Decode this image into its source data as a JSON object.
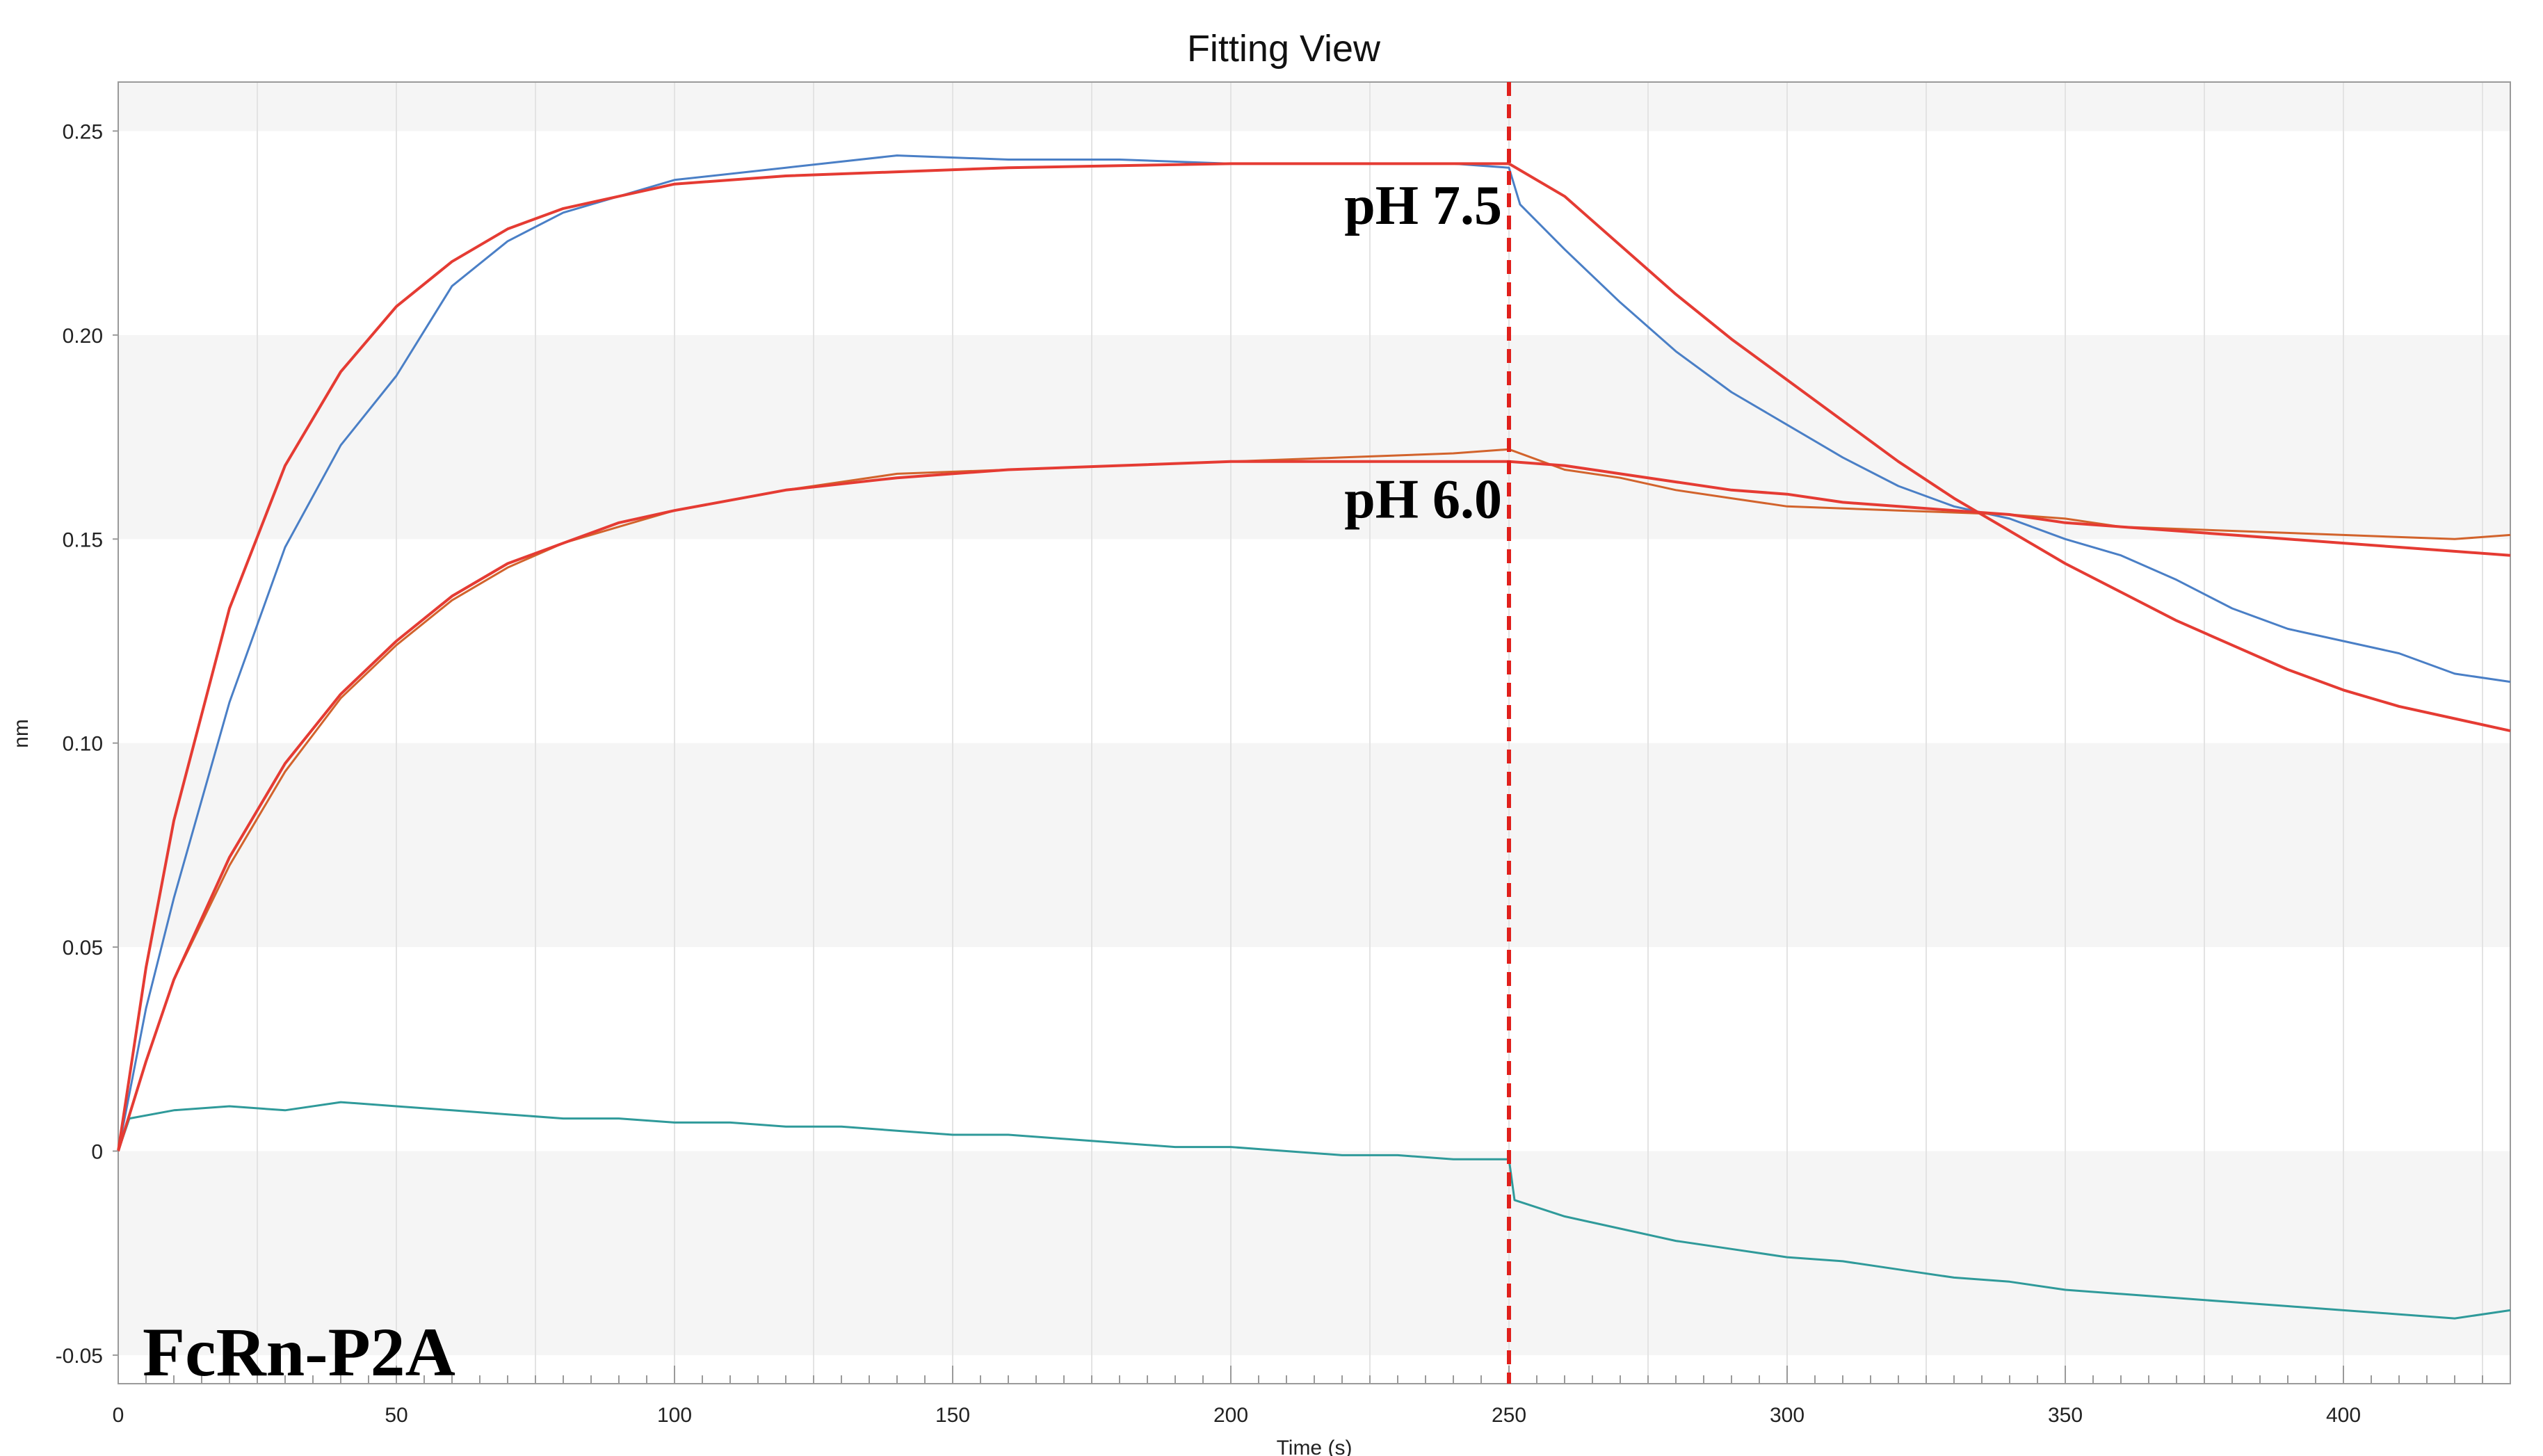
{
  "chart_data": {
    "type": "line",
    "title": "Fitting View",
    "xlabel": "Time (s)",
    "ylabel": "nm",
    "xlim": [
      0,
      430
    ],
    "ylim": [
      -0.057,
      0.262
    ],
    "x_ticks": [
      0,
      50,
      100,
      150,
      200,
      250,
      300,
      350,
      400
    ],
    "y_ticks": [
      -0.05,
      0,
      0.05,
      0.1,
      0.15,
      0.2,
      0.25
    ],
    "x_tick_labels": [
      "0",
      "50",
      "100",
      "150",
      "200",
      "250",
      "300",
      "350",
      "400"
    ],
    "y_tick_labels": [
      "-0.05",
      "0",
      "0.05",
      "0.10",
      "0.15",
      "0.20",
      "0.25"
    ],
    "grid": true,
    "vertical_marker": {
      "x": 250,
      "color": "#e0201c",
      "style": "dashed"
    },
    "series": [
      {
        "color": "#4a7fc6",
        "kind": "raw",
        "points": [
          [
            0,
            0
          ],
          [
            5,
            0.035
          ],
          [
            10,
            0.062
          ],
          [
            20,
            0.11
          ],
          [
            30,
            0.148
          ],
          [
            40,
            0.173
          ],
          [
            50,
            0.19
          ],
          [
            60,
            0.212
          ],
          [
            70,
            0.223
          ],
          [
            80,
            0.23
          ],
          [
            90,
            0.234
          ],
          [
            100,
            0.238
          ],
          [
            120,
            0.241
          ],
          [
            140,
            0.244
          ],
          [
            160,
            0.243
          ],
          [
            180,
            0.243
          ],
          [
            200,
            0.242
          ],
          [
            220,
            0.242
          ],
          [
            240,
            0.242
          ],
          [
            250,
            0.241
          ],
          [
            252,
            0.232
          ],
          [
            260,
            0.221
          ],
          [
            270,
            0.208
          ],
          [
            280,
            0.196
          ],
          [
            290,
            0.186
          ],
          [
            300,
            0.178
          ],
          [
            310,
            0.17
          ],
          [
            320,
            0.163
          ],
          [
            330,
            0.158
          ],
          [
            340,
            0.155
          ],
          [
            350,
            0.15
          ],
          [
            360,
            0.146
          ],
          [
            370,
            0.14
          ],
          [
            380,
            0.133
          ],
          [
            390,
            0.128
          ],
          [
            400,
            0.125
          ],
          [
            410,
            0.122
          ],
          [
            420,
            0.117
          ],
          [
            430,
            0.115
          ]
        ]
      },
      {
        "color": "#e53b33",
        "kind": "fit",
        "points": [
          [
            0,
            0
          ],
          [
            5,
            0.045
          ],
          [
            10,
            0.081
          ],
          [
            20,
            0.133
          ],
          [
            30,
            0.168
          ],
          [
            40,
            0.191
          ],
          [
            50,
            0.207
          ],
          [
            60,
            0.218
          ],
          [
            70,
            0.226
          ],
          [
            80,
            0.231
          ],
          [
            90,
            0.234
          ],
          [
            100,
            0.237
          ],
          [
            120,
            0.239
          ],
          [
            140,
            0.24
          ],
          [
            160,
            0.241
          ],
          [
            180,
            0.2415
          ],
          [
            200,
            0.242
          ],
          [
            220,
            0.242
          ],
          [
            240,
            0.242
          ],
          [
            250,
            0.242
          ],
          [
            260,
            0.234
          ],
          [
            270,
            0.222
          ],
          [
            280,
            0.21
          ],
          [
            290,
            0.199
          ],
          [
            300,
            0.189
          ],
          [
            310,
            0.179
          ],
          [
            320,
            0.169
          ],
          [
            330,
            0.16
          ],
          [
            340,
            0.152
          ],
          [
            350,
            0.144
          ],
          [
            360,
            0.137
          ],
          [
            370,
            0.13
          ],
          [
            380,
            0.124
          ],
          [
            390,
            0.118
          ],
          [
            400,
            0.113
          ],
          [
            410,
            0.109
          ],
          [
            420,
            0.106
          ],
          [
            430,
            0.103
          ]
        ]
      },
      {
        "color": "#d2632c",
        "kind": "raw",
        "points": [
          [
            0,
            0
          ],
          [
            5,
            0.022
          ],
          [
            10,
            0.042
          ],
          [
            20,
            0.07
          ],
          [
            30,
            0.093
          ],
          [
            40,
            0.111
          ],
          [
            50,
            0.124
          ],
          [
            60,
            0.135
          ],
          [
            70,
            0.143
          ],
          [
            80,
            0.149
          ],
          [
            90,
            0.153
          ],
          [
            100,
            0.157
          ],
          [
            120,
            0.162
          ],
          [
            140,
            0.166
          ],
          [
            160,
            0.167
          ],
          [
            180,
            0.168
          ],
          [
            200,
            0.169
          ],
          [
            220,
            0.17
          ],
          [
            240,
            0.171
          ],
          [
            250,
            0.172
          ],
          [
            260,
            0.167
          ],
          [
            270,
            0.165
          ],
          [
            280,
            0.162
          ],
          [
            290,
            0.16
          ],
          [
            300,
            0.158
          ],
          [
            320,
            0.157
          ],
          [
            340,
            0.156
          ],
          [
            350,
            0.155
          ],
          [
            360,
            0.153
          ],
          [
            380,
            0.152
          ],
          [
            400,
            0.151
          ],
          [
            420,
            0.15
          ],
          [
            430,
            0.151
          ]
        ]
      },
      {
        "color": "#e53b33",
        "kind": "fit",
        "points": [
          [
            0,
            0
          ],
          [
            5,
            0.022
          ],
          [
            10,
            0.042
          ],
          [
            20,
            0.072
          ],
          [
            30,
            0.095
          ],
          [
            40,
            0.112
          ],
          [
            50,
            0.125
          ],
          [
            60,
            0.136
          ],
          [
            70,
            0.144
          ],
          [
            80,
            0.149
          ],
          [
            90,
            0.154
          ],
          [
            100,
            0.157
          ],
          [
            120,
            0.162
          ],
          [
            140,
            0.165
          ],
          [
            160,
            0.167
          ],
          [
            180,
            0.168
          ],
          [
            200,
            0.169
          ],
          [
            220,
            0.169
          ],
          [
            240,
            0.169
          ],
          [
            250,
            0.169
          ],
          [
            260,
            0.168
          ],
          [
            270,
            0.166
          ],
          [
            280,
            0.164
          ],
          [
            290,
            0.162
          ],
          [
            300,
            0.161
          ],
          [
            310,
            0.159
          ],
          [
            320,
            0.158
          ],
          [
            330,
            0.157
          ],
          [
            340,
            0.156
          ],
          [
            350,
            0.154
          ],
          [
            360,
            0.153
          ],
          [
            370,
            0.152
          ],
          [
            380,
            0.151
          ],
          [
            390,
            0.15
          ],
          [
            400,
            0.149
          ],
          [
            410,
            0.148
          ],
          [
            420,
            0.147
          ],
          [
            430,
            0.146
          ]
        ]
      },
      {
        "color": "#2f9a9a",
        "kind": "raw",
        "points": [
          [
            0,
            0
          ],
          [
            2,
            0.008
          ],
          [
            10,
            0.01
          ],
          [
            20,
            0.011
          ],
          [
            30,
            0.01
          ],
          [
            40,
            0.012
          ],
          [
            50,
            0.011
          ],
          [
            60,
            0.01
          ],
          [
            70,
            0.009
          ],
          [
            80,
            0.008
          ],
          [
            90,
            0.008
          ],
          [
            100,
            0.007
          ],
          [
            110,
            0.007
          ],
          [
            120,
            0.006
          ],
          [
            130,
            0.006
          ],
          [
            140,
            0.005
          ],
          [
            150,
            0.004
          ],
          [
            160,
            0.004
          ],
          [
            170,
            0.003
          ],
          [
            180,
            0.002
          ],
          [
            190,
            0.001
          ],
          [
            200,
            0.001
          ],
          [
            210,
            0.0
          ],
          [
            220,
            -0.001
          ],
          [
            230,
            -0.001
          ],
          [
            240,
            -0.002
          ],
          [
            250,
            -0.002
          ],
          [
            251,
            -0.012
          ],
          [
            260,
            -0.016
          ],
          [
            270,
            -0.019
          ],
          [
            280,
            -0.022
          ],
          [
            290,
            -0.024
          ],
          [
            300,
            -0.026
          ],
          [
            310,
            -0.027
          ],
          [
            320,
            -0.029
          ],
          [
            330,
            -0.031
          ],
          [
            340,
            -0.032
          ],
          [
            350,
            -0.034
          ],
          [
            360,
            -0.035
          ],
          [
            370,
            -0.036
          ],
          [
            380,
            -0.037
          ],
          [
            390,
            -0.038
          ],
          [
            400,
            -0.039
          ],
          [
            410,
            -0.04
          ],
          [
            420,
            -0.041
          ],
          [
            430,
            -0.039
          ]
        ]
      }
    ],
    "annotations": [
      {
        "text": "pH 7.5",
        "x": 250,
        "y": 0.232,
        "anchor": "end"
      },
      {
        "text": "pH 6.0",
        "x": 250,
        "y": 0.16,
        "anchor": "end"
      }
    ],
    "corner_label": "FcRn-P2A"
  }
}
